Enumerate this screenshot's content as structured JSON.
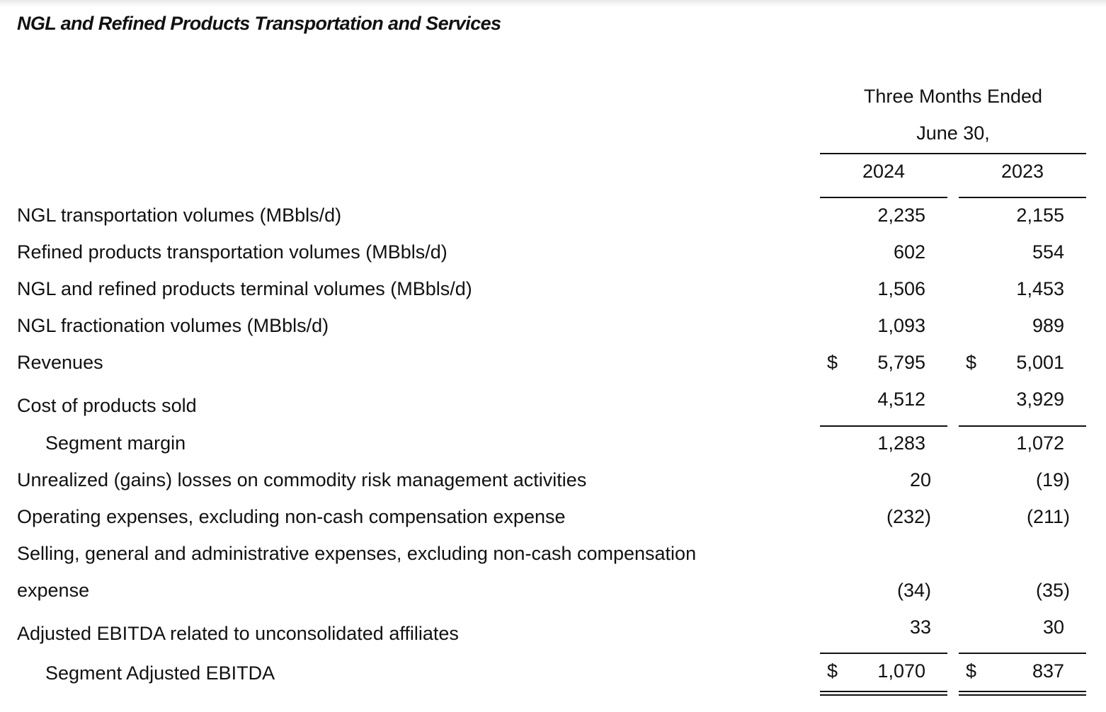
{
  "title": "NGL and Refined Products Transportation and Services",
  "header": {
    "period_line1": "Three Months Ended",
    "period_line2": "June 30,",
    "col1": "2024",
    "col2": "2023"
  },
  "currency_symbol": "$",
  "rows": [
    {
      "label": "NGL transportation volumes (MBbls/d)",
      "v2024": "2,235",
      "v2023": "2,155"
    },
    {
      "label": "Refined products transportation volumes (MBbls/d)",
      "v2024": "602",
      "v2023": "554"
    },
    {
      "label": "NGL and refined products terminal volumes (MBbls/d)",
      "v2024": "1,506",
      "v2023": "1,453"
    },
    {
      "label": "NGL fractionation volumes (MBbls/d)",
      "v2024": "1,093",
      "v2023": "989"
    },
    {
      "label": "Revenues",
      "v2024": "5,795",
      "v2023": "5,001"
    },
    {
      "label": "Cost of products sold",
      "v2024": "4,512",
      "v2023": "3,929"
    },
    {
      "label": "Segment margin",
      "v2024": "1,283",
      "v2023": "1,072"
    },
    {
      "label": "Unrealized (gains) losses on commodity risk management activities",
      "v2024": "20",
      "v2023": "(19)"
    },
    {
      "label": "Operating expenses, excluding non-cash compensation expense",
      "v2024": "(232)",
      "v2023": "(211)"
    },
    {
      "label": "Selling, general and administrative expenses, excluding non-cash compensation",
      "label_cont": "expense",
      "v2024": "(34)",
      "v2023": "(35)"
    },
    {
      "label": "Adjusted EBITDA related to unconsolidated affiliates",
      "v2024": "33",
      "v2023": "30"
    },
    {
      "label": "Segment Adjusted EBITDA",
      "v2024": "1,070",
      "v2023": "837"
    }
  ]
}
